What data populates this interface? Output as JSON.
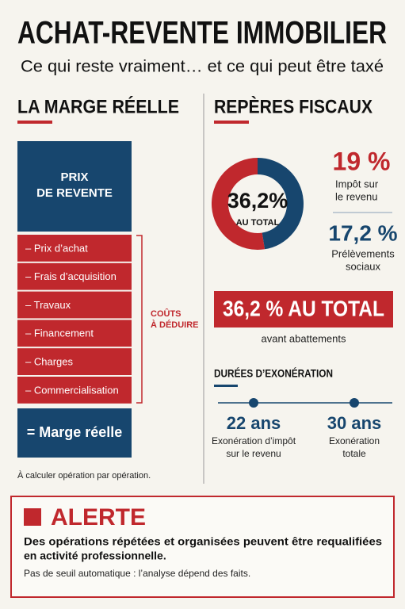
{
  "header": {
    "title": "ACHAT-REVENTE IMMOBILIER",
    "subtitle": "Ce qui reste vraiment… et ce qui peut être taxé"
  },
  "left": {
    "heading": "LA MARGE RÉELLE",
    "sale_price": [
      "PRIX",
      "DE REVENTE"
    ],
    "costs": [
      "– Prix d’achat",
      "– Frais d’acquisition",
      "– Travaux",
      "– Financement",
      "– Charges",
      "– Commercialisation"
    ],
    "costs_label": [
      "COÛTS",
      "À DÉDUIRE"
    ],
    "result": "= Marge réelle",
    "note": "À calculer opération par opération."
  },
  "right": {
    "heading": "REPÈRES FISCAUX",
    "donut": {
      "values": [
        19,
        17.2
      ],
      "value_labels": [
        "19 %",
        "17,2 %"
      ],
      "colors": [
        "#c0282d",
        "#17466e"
      ],
      "center_value": "36,2%",
      "center_label": "AU TOTAL"
    },
    "items": [
      [
        "Impôt sur",
        "le revenu"
      ],
      [
        "Prélèvements",
        "sociaux"
      ]
    ],
    "total_banner": "36,2 % AU TOTAL",
    "total_note": "avant abattements",
    "durations_heading": "DURÉES D’EXONÉRATION",
    "durations": [
      {
        "value": "22 ans",
        "desc": [
          "Exonération d’impôt",
          "sur le revenu"
        ]
      },
      {
        "value": "30 ans",
        "desc": [
          "Exonération",
          "totale"
        ]
      }
    ]
  },
  "alert": {
    "title": "ALERTE",
    "text": [
      "Des opérations répétées et organisées peuvent être requalifiées",
      "en activité professionnelle."
    ],
    "note": "Pas de seuil automatique : l’analyse dépend des faits."
  }
}
